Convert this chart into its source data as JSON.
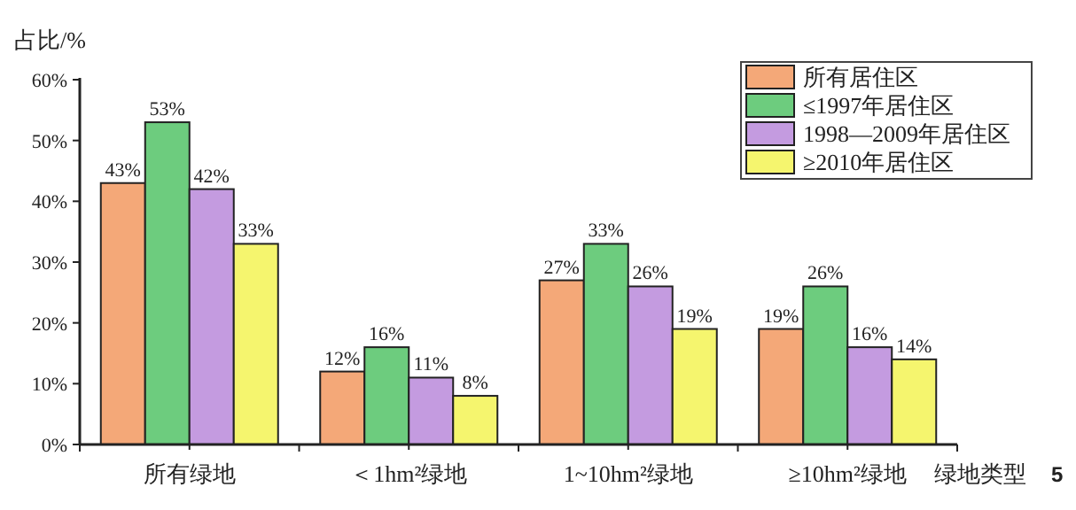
{
  "chart_data": {
    "type": "bar",
    "ylabel": "占比/%",
    "xlabel": "绿地类型",
    "categories": [
      "所有绿地",
      "＜1hm²绿地",
      "1~10hm²绿地",
      "≥10hm²绿地"
    ],
    "series": [
      {
        "name": "所有居住区",
        "color": "#f4a878",
        "values": [
          43,
          12,
          27,
          19
        ],
        "value_labels": [
          "43%",
          "12%",
          "27%",
          "19%"
        ]
      },
      {
        "name": "≤1997年居住区",
        "color": "#6dcc7e",
        "values": [
          53,
          16,
          33,
          26
        ],
        "value_labels": [
          "53%",
          "16%",
          "33%",
          "26%"
        ]
      },
      {
        "name": "1998—2009年居住区",
        "color": "#c49be0",
        "values": [
          42,
          11,
          26,
          16
        ],
        "value_labels": [
          "42%",
          "11%",
          "26%",
          "16%"
        ]
      },
      {
        "name": "≥2010年居住区",
        "color": "#f5f56e",
        "values": [
          33,
          8,
          19,
          14
        ],
        "value_labels": [
          "33%",
          "8%",
          "19%",
          "14%"
        ]
      }
    ],
    "ylim": [
      0,
      60
    ],
    "yticks": [
      {
        "value": 0,
        "label": "0%"
      },
      {
        "value": 10,
        "label": "10%"
      },
      {
        "value": 20,
        "label": "20%"
      },
      {
        "value": 30,
        "label": "30%"
      },
      {
        "value": 40,
        "label": "40%"
      },
      {
        "value": 50,
        "label": "50%"
      },
      {
        "value": 60,
        "label": "60%"
      }
    ],
    "legend": "top right",
    "grid": false,
    "annotations": [
      "5"
    ]
  }
}
